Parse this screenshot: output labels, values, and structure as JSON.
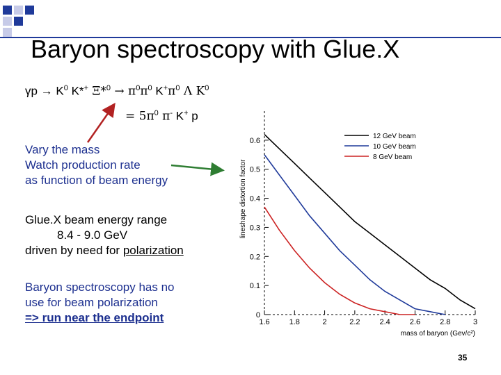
{
  "slide": {
    "title": "Baryon spectroscopy with Glue.X",
    "page_number": "35"
  },
  "reaction": {
    "line1_parts": [
      "γp → K",
      "0",
      " K*",
      "+",
      " Ξ*",
      "0",
      " → π",
      "0",
      "π",
      "0",
      " K",
      "+",
      "π",
      "0",
      " Λ K",
      "0"
    ],
    "line2_parts": [
      "= 5π",
      "0",
      " π",
      "-",
      " K",
      "+",
      " p"
    ]
  },
  "notes": {
    "block1": [
      "Vary the mass",
      "Watch production rate",
      "as function of beam energy"
    ],
    "block2": {
      "line1": "Glue.X beam energy range",
      "line2": "8.4 - 9.0 GeV",
      "line3_prefix": "driven by need for ",
      "line3_underlined": "polarization"
    },
    "block3": {
      "line1": "Baryon spectroscopy has no",
      "line2": "use for beam polarization",
      "line3": "=>  run near the endpoint"
    }
  },
  "chart_data": {
    "type": "line",
    "xlabel": "mass of baryon (Gev/c²)",
    "ylabel": "lineshape distortion factor",
    "xlim": [
      1.6,
      3.0
    ],
    "ylim": [
      0,
      0.7
    ],
    "x_ticks": [
      "1.6",
      "1.8",
      "2",
      "2.2",
      "2.4",
      "2.6",
      "2.8",
      "3"
    ],
    "x_tick_values": [
      1.6,
      1.8,
      2.0,
      2.2,
      2.4,
      2.6,
      2.8,
      3.0
    ],
    "y_ticks": [
      "0",
      "0.1",
      "0.2",
      "0.3",
      "0.4",
      "0.5",
      "0.6"
    ],
    "y_tick_values": [
      0,
      0.1,
      0.2,
      0.3,
      0.4,
      0.5,
      0.6
    ],
    "legend_position": "top-right",
    "series": [
      {
        "name": "12 GeV beam",
        "color": "#000000",
        "x": [
          1.6,
          1.7,
          1.8,
          1.9,
          2.0,
          2.1,
          2.2,
          2.3,
          2.4,
          2.5,
          2.6,
          2.7,
          2.8,
          2.9,
          3.0
        ],
        "y": [
          0.62,
          0.57,
          0.52,
          0.47,
          0.42,
          0.37,
          0.32,
          0.28,
          0.24,
          0.2,
          0.16,
          0.12,
          0.09,
          0.05,
          0.02
        ]
      },
      {
        "name": "10 GeV beam",
        "color": "#1f3a9a",
        "x": [
          1.6,
          1.7,
          1.8,
          1.9,
          2.0,
          2.1,
          2.2,
          2.3,
          2.4,
          2.5,
          2.6,
          2.7,
          2.8
        ],
        "y": [
          0.55,
          0.48,
          0.41,
          0.34,
          0.28,
          0.22,
          0.17,
          0.12,
          0.08,
          0.05,
          0.02,
          0.01,
          0.0
        ]
      },
      {
        "name": "8 GeV beam",
        "color": "#cc2222",
        "x": [
          1.6,
          1.7,
          1.8,
          1.9,
          2.0,
          2.1,
          2.2,
          2.3,
          2.4,
          2.5,
          2.6
        ],
        "y": [
          0.37,
          0.29,
          0.22,
          0.16,
          0.11,
          0.07,
          0.04,
          0.02,
          0.01,
          0.0,
          0.0
        ]
      }
    ]
  },
  "colors": {
    "accent_blue": "#1f3a9a",
    "arrow_red": "#b22222",
    "arrow_green": "#2e7d32",
    "note_text": "#1c2f8f"
  }
}
